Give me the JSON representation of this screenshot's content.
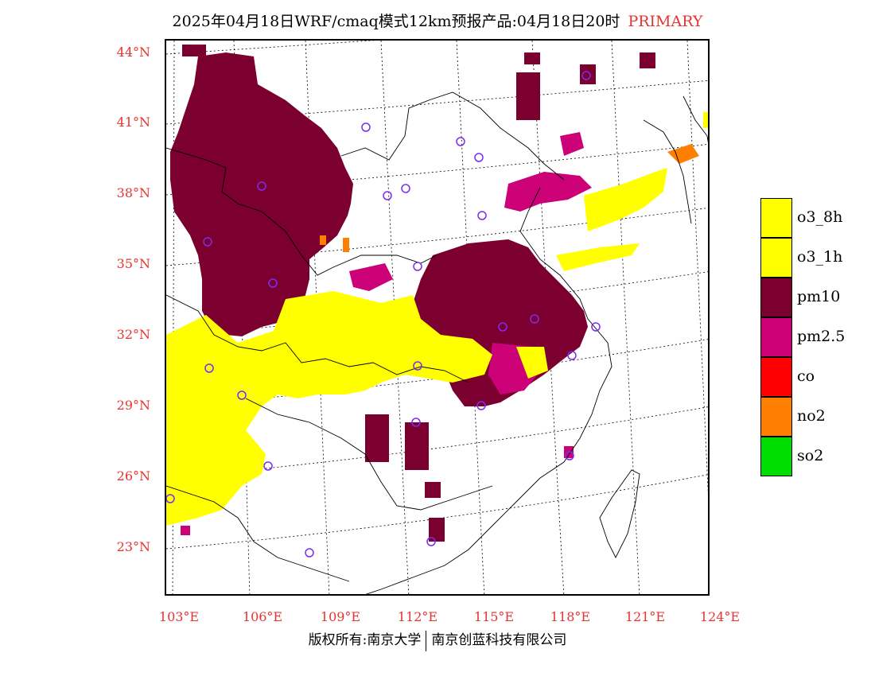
{
  "header": {
    "title": "2025年04月18日WRF/cmaq模式12km预报产品:04月18日20时",
    "primary_label": "PRIMARY"
  },
  "map": {
    "lat_labels": [
      "44°N",
      "41°N",
      "38°N",
      "35°N",
      "32°N",
      "29°N",
      "26°N",
      "23°N"
    ],
    "lon_labels": [
      "103°E",
      "106°E",
      "109°E",
      "112°E",
      "115°E",
      "118°E",
      "121°E",
      "124°E"
    ]
  },
  "legend": {
    "items": [
      {
        "label": "o3_8h",
        "color": "#ffff00"
      },
      {
        "label": "o3_1h",
        "color": "#ffff00"
      },
      {
        "label": "pm10",
        "color": "#7b0030"
      },
      {
        "label": "pm2.5",
        "color": "#cc0077"
      },
      {
        "label": "co",
        "color": "#ff0000"
      },
      {
        "label": "no2",
        "color": "#ff7f00"
      },
      {
        "label": "so2",
        "color": "#00dd00"
      }
    ]
  },
  "footer": {
    "copyright_left": "版权所有:南京大学",
    "copyright_right": "南京创蓝科技有限公司"
  }
}
